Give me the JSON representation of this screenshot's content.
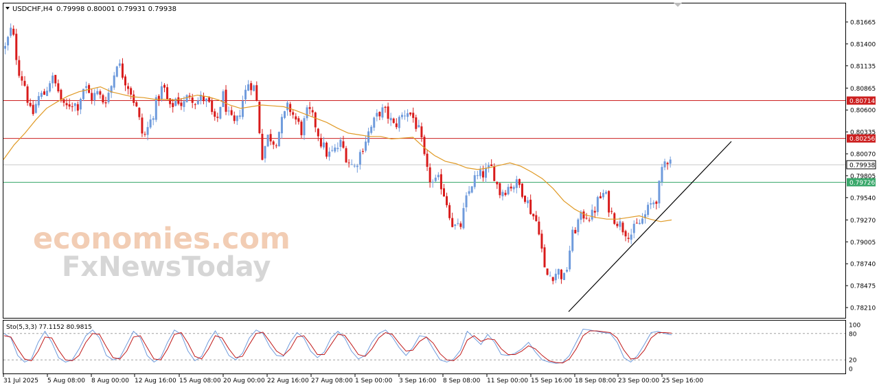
{
  "header": {
    "symbol": "USDCHF,H4",
    "ohlc": "0.79998 0.80001 0.79931 0.79938"
  },
  "watermark": {
    "line1": "economies.com",
    "line2": "FxNewsToday"
  },
  "colors": {
    "bull": "#6f9bdc",
    "bear": "#d81b1b",
    "ma": "#e09a25",
    "resistance": "#cc1f1f",
    "support": "#3aa86b",
    "current": "#c8c8c8",
    "stoch_main": "#6f9bdc",
    "stoch_signal": "#c01818",
    "trendline": "#000000",
    "watermark_orange": "#f2cdb4",
    "watermark_gray": "#d6d6d6"
  },
  "chart_data": {
    "type": "candlestick",
    "symbol": "USDCHF",
    "timeframe": "H4",
    "ylim": [
      0.7821,
      0.818
    ],
    "price_ticks": [
      "0.81665",
      "0.81400",
      "0.81135",
      "0.80865",
      "0.80600",
      "0.80335",
      "0.80070",
      "0.79805",
      "0.79540",
      "0.79270",
      "0.79005",
      "0.78740",
      "0.78475",
      "0.78210"
    ],
    "x_labels": [
      "31 Jul 2025",
      "5 Aug 08:00",
      "8 Aug 00:00",
      "12 Aug 16:00",
      "15 Aug 08:00",
      "20 Aug 00:00",
      "22 Aug 16:00",
      "27 Aug 08:00",
      "1 Sep 00:00",
      "3 Sep 16:00",
      "8 Sep 08:00",
      "11 Sep 00:00",
      "15 Sep 16:00",
      "18 Sep 08:00",
      "23 Sep 00:00",
      "25 Sep 16:00"
    ],
    "horizontal_lines": [
      {
        "value": 0.80714,
        "label": "0.80714",
        "kind": "resistance"
      },
      {
        "value": 0.80256,
        "label": "0.80256",
        "kind": "resistance"
      },
      {
        "value": 0.79938,
        "label": "0.79938",
        "kind": "current"
      },
      {
        "value": 0.79726,
        "label": "0.79726",
        "kind": "support"
      }
    ],
    "trendline": {
      "from": {
        "date": "16 Sep",
        "price": 0.7822
      },
      "to": {
        "date": "30 Sep",
        "price": 0.803
      }
    },
    "close_path": [
      0.8135,
      0.816,
      0.811,
      0.809,
      0.805,
      0.8075,
      0.808,
      0.81,
      0.8085,
      0.806,
      0.807,
      0.8065,
      0.809,
      0.8075,
      0.808,
      0.807,
      0.8085,
      0.812,
      0.81,
      0.8085,
      0.806,
      0.8025,
      0.8045,
      0.807,
      0.809,
      0.806,
      0.8075,
      0.8065,
      0.808,
      0.807,
      0.8075,
      0.8065,
      0.804,
      0.808,
      0.805,
      0.804,
      0.807,
      0.8095,
      0.8085,
      0.8005,
      0.803,
      0.802,
      0.8045,
      0.8065,
      0.805,
      0.8035,
      0.806,
      0.8045,
      0.802,
      0.8005,
      0.801,
      0.802,
      0.8,
      0.799,
      0.801,
      0.803,
      0.8045,
      0.806,
      0.8055,
      0.804,
      0.805,
      0.806,
      0.805,
      0.803,
      0.7985,
      0.797,
      0.7975,
      0.795,
      0.792,
      0.7915,
      0.795,
      0.7975,
      0.798,
      0.7985,
      0.799,
      0.796,
      0.7965,
      0.797,
      0.797,
      0.7955,
      0.7935,
      0.792,
      0.786,
      0.786,
      0.7865,
      0.7855,
      0.7905,
      0.7925,
      0.7935,
      0.793,
      0.795,
      0.796,
      0.7935,
      0.7925,
      0.7915,
      0.791,
      0.792,
      0.793,
      0.7945,
      0.7955,
      0.7995,
      0.8005
    ],
    "ma_path": [
      0.8,
      0.8018,
      0.8032,
      0.8048,
      0.8062,
      0.807,
      0.8077,
      0.8082,
      0.8085,
      0.8088,
      0.8082,
      0.8079,
      0.8076,
      0.8075,
      0.8073,
      0.8073,
      0.8072,
      0.8075,
      0.8078,
      0.8076,
      0.8072,
      0.8066,
      0.8062,
      0.8064,
      0.8066,
      0.8065,
      0.8064,
      0.806,
      0.8055,
      0.805,
      0.8045,
      0.8038,
      0.8032,
      0.803,
      0.8028,
      0.8028,
      0.8025,
      0.8026,
      0.8027,
      0.8015,
      0.8005,
      0.7998,
      0.7995,
      0.799,
      0.7988,
      0.799,
      0.7993,
      0.7996,
      0.7992,
      0.7985,
      0.7977,
      0.7965,
      0.795,
      0.794,
      0.7933,
      0.793,
      0.7928,
      0.7928,
      0.793,
      0.7932,
      0.7928,
      0.7925,
      0.7927
    ],
    "stochastic": {
      "label": "Sto(5,3,3) 77.1152 80.9815",
      "levels": [
        "100",
        "80",
        "20",
        "0"
      ],
      "k": [
        80,
        70,
        30,
        15,
        22,
        60,
        85,
        60,
        25,
        15,
        20,
        45,
        75,
        88,
        70,
        30,
        20,
        25,
        55,
        85,
        70,
        30,
        15,
        25,
        60,
        88,
        78,
        40,
        18,
        28,
        62,
        86,
        60,
        30,
        20,
        35,
        70,
        88,
        80,
        50,
        30,
        28,
        60,
        82,
        70,
        40,
        25,
        38,
        70,
        85,
        70,
        40,
        22,
        30,
        60,
        80,
        88,
        72,
        48,
        30,
        48,
        75,
        72,
        45,
        20,
        15,
        22,
        42,
        85,
        70,
        55,
        78,
        60,
        32,
        30,
        35,
        45,
        60,
        38,
        20,
        15,
        12,
        14,
        30,
        60,
        90,
        88,
        85,
        82,
        80,
        60,
        25,
        15,
        30,
        55,
        82,
        85,
        80,
        77
      ],
      "d": [
        75,
        72,
        45,
        22,
        18,
        40,
        72,
        70,
        42,
        20,
        18,
        30,
        60,
        80,
        78,
        50,
        25,
        22,
        40,
        72,
        75,
        48,
        22,
        20,
        45,
        78,
        82,
        58,
        28,
        22,
        45,
        75,
        70,
        45,
        25,
        28,
        55,
        80,
        83,
        62,
        40,
        30,
        45,
        72,
        75,
        55,
        32,
        32,
        55,
        78,
        76,
        55,
        32,
        28,
        45,
        70,
        82,
        78,
        58,
        40,
        42,
        62,
        72,
        58,
        34,
        20,
        18,
        32,
        65,
        75,
        62,
        68,
        66,
        45,
        32,
        32,
        40,
        52,
        45,
        30,
        18,
        14,
        13,
        22,
        45,
        75,
        86,
        86,
        84,
        82,
        70,
        42,
        22,
        24,
        42,
        70,
        82,
        82,
        81
      ]
    }
  }
}
